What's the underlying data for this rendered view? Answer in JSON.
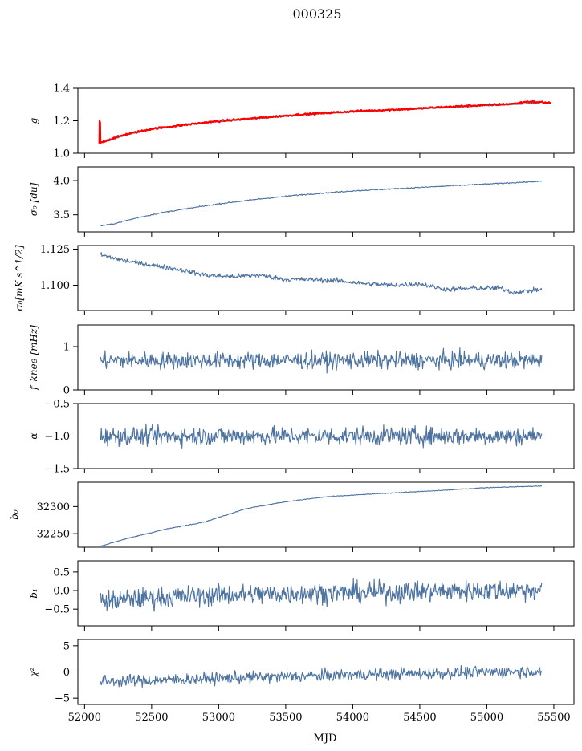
{
  "figure_title": "000325",
  "chart_data": {
    "type": "line",
    "xlabel": "MJD",
    "xlim": [
      51950,
      55650
    ],
    "x_range": [
      52120,
      55410
    ],
    "xticks": [
      52000,
      52500,
      53000,
      53500,
      54000,
      54500,
      55000,
      55500
    ],
    "xtick_labels": [
      "52000",
      "52500",
      "53000",
      "53500",
      "54000",
      "54500",
      "55000",
      "55500"
    ],
    "line_color": "#4c72a0",
    "panels": [
      {
        "id": "g",
        "ylabel": "g",
        "ylim": [
          1.0,
          1.4
        ],
        "yticks": [
          1.0,
          1.2,
          1.4
        ],
        "ytick_labels": [
          "1.0",
          "1.2",
          "1.4"
        ],
        "series": [
          {
            "name": "g model",
            "color": "#4c72a0",
            "x": [
              52120,
              52150,
              52300,
              52500,
              52800,
              53000,
              53300,
              53600,
              54000,
              54400,
              54800,
              55200,
              55400
            ],
            "y": [
              1.065,
              1.07,
              1.11,
              1.15,
              1.18,
              1.195,
              1.215,
              1.235,
              1.255,
              1.27,
              1.285,
              1.3,
              1.31
            ],
            "noise": 0.002
          },
          {
            "name": "g data",
            "color": "#ff0000",
            "x": [
              52110,
              52112,
              52114,
              52116,
              52118,
              52120,
              52150,
              52300,
              52500,
              52800,
              53000,
              53300,
              53600,
              54000,
              54400,
              54800,
              55200,
              55300,
              55400,
              55480
            ],
            "y": [
              1.06,
              1.2,
              1.06,
              1.19,
              1.065,
              1.065,
              1.075,
              1.115,
              1.15,
              1.18,
              1.198,
              1.218,
              1.238,
              1.258,
              1.272,
              1.29,
              1.305,
              1.318,
              1.315,
              1.31
            ],
            "noise": 0.004
          }
        ]
      },
      {
        "id": "sigma0",
        "ylabel": "σ₀ [du]",
        "ylim": [
          3.25,
          4.2
        ],
        "yticks": [
          3.5,
          4.0
        ],
        "ytick_labels": [
          "3.5",
          "4.0"
        ],
        "series": [
          {
            "name": "sigma0",
            "color": "#4c72a0",
            "x": [
              52120,
              52200,
              52400,
              52600,
              52800,
              53000,
              53300,
              53600,
              54000,
              54400,
              54800,
              55000,
              55410
            ],
            "y": [
              3.34,
              3.36,
              3.46,
              3.54,
              3.6,
              3.66,
              3.73,
              3.79,
              3.85,
              3.89,
              3.93,
              3.95,
              3.99
            ],
            "noise": 0.006
          }
        ]
      },
      {
        "id": "sigma0_mk",
        "ylabel": "σ₀[mK s^1/2]",
        "ylim": [
          1.0825,
          1.1275
        ],
        "yticks": [
          1.1,
          1.125
        ],
        "ytick_labels": [
          "1.100",
          "1.125"
        ],
        "series": [
          {
            "name": "sigma0 mK",
            "color": "#4c72a0",
            "x": [
              52120,
              52300,
              52500,
              52700,
              52900,
              53100,
              53300,
              53500,
              53700,
              53900,
              54100,
              54300,
              54500,
              54700,
              54900,
              55100,
              55200,
              55300,
              55410
            ],
            "y": [
              1.121,
              1.117,
              1.114,
              1.111,
              1.107,
              1.106,
              1.107,
              1.104,
              1.104,
              1.103,
              1.101,
              1.1,
              1.101,
              1.097,
              1.098,
              1.098,
              1.095,
              1.096,
              1.097
            ],
            "noise": 0.0012
          }
        ]
      },
      {
        "id": "fknee",
        "ylabel": "f_knee [mHz]",
        "ylim": [
          0,
          1.5
        ],
        "yticks": [
          0,
          1
        ],
        "ytick_labels": [
          "0",
          "1"
        ],
        "series": [
          {
            "name": "fknee",
            "color": "#4c72a0",
            "x": [
              52120,
              55410
            ],
            "y": [
              0.68,
              0.68
            ],
            "noise": 0.14
          }
        ]
      },
      {
        "id": "alpha",
        "ylabel": "α",
        "ylim": [
          -1.5,
          -0.5
        ],
        "yticks": [
          -1.5,
          -1.0,
          -0.5
        ],
        "ytick_labels": [
          "−1.5",
          "−1.0",
          "−0.5"
        ],
        "series": [
          {
            "name": "alpha",
            "color": "#4c72a0",
            "x": [
              52120,
              55410
            ],
            "y": [
              -1.0,
              -1.0
            ],
            "noise": 0.1
          }
        ]
      },
      {
        "id": "b0",
        "ylabel": "b₀",
        "ylim": [
          32225,
          32345
        ],
        "yticks": [
          32250,
          32300
        ],
        "ytick_labels": [
          "32250",
          "32300"
        ],
        "series": [
          {
            "name": "b0",
            "color": "#4c72a0",
            "x": [
              52120,
              52300,
              52600,
              52900,
              53000,
              53200,
              53500,
              53800,
              54200,
              54600,
              55000,
              55410
            ],
            "y": [
              32227,
              32240,
              32258,
              32272,
              32280,
              32296,
              32309,
              32318,
              32324,
              32329,
              32335,
              32338
            ],
            "noise": 0.5
          }
        ]
      },
      {
        "id": "b1",
        "ylabel": "b₁",
        "ylim": [
          -0.95,
          0.8
        ],
        "yticks": [
          -0.5,
          0.0,
          0.5
        ],
        "ytick_labels": [
          "−0.5",
          "0.0",
          "0.5"
        ],
        "series": [
          {
            "name": "b1",
            "color": "#4c72a0",
            "x": [
              52120,
              52500,
              53000,
              53500,
              54000,
              54500,
              55000,
              55410
            ],
            "y": [
              -0.28,
              -0.2,
              -0.12,
              -0.08,
              -0.05,
              -0.03,
              0.0,
              0.02
            ],
            "noise": 0.2
          }
        ]
      },
      {
        "id": "chi2",
        "ylabel": "χ²",
        "ylim": [
          -6.2,
          6.2
        ],
        "yticks": [
          -5,
          0,
          5
        ],
        "ytick_labels": [
          "−5",
          "0",
          "5"
        ],
        "series": [
          {
            "name": "chi2",
            "color": "#4c72a0",
            "x": [
              52120,
              52500,
              53000,
              53500,
              54000,
              54500,
              55000,
              55410
            ],
            "y": [
              -1.8,
              -1.6,
              -1.2,
              -0.9,
              -0.5,
              -0.3,
              0.0,
              0.2
            ],
            "noise": 0.8
          }
        ]
      }
    ]
  }
}
